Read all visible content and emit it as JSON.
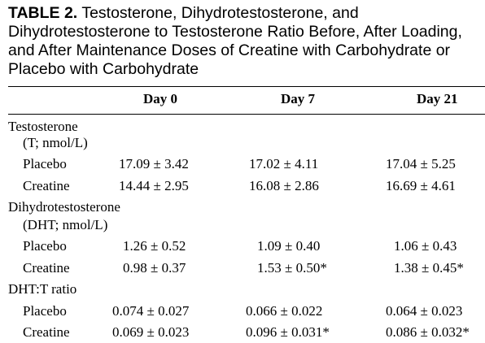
{
  "caption": {
    "label": "TABLE 2.",
    "title": "Testosterone, Dihydrotestosterone, and Dihydrotestosterone to Testosterone Ratio Before, After Loading, and After Maintenance Doses of Creatine with Carbohydrate or Placebo with Carbohydrate"
  },
  "columns": [
    "Day 0",
    "Day 7",
    "Day 21"
  ],
  "sections": [
    {
      "title_line1": "Testosterone",
      "title_line2": "(T; nmol/L)",
      "rows": [
        {
          "label": "Placebo",
          "values": [
            "17.09 ± 3.42",
            "17.02 ± 4.11",
            "17.04 ± 5.25"
          ]
        },
        {
          "label": "Creatine",
          "values": [
            "14.44 ± 2.95",
            "16.08 ± 2.86",
            "16.69 ± 4.61"
          ]
        }
      ]
    },
    {
      "title_line1": "Dihydrotestosterone",
      "title_line2": "(DHT; nmol/L)",
      "rows": [
        {
          "label": "Placebo",
          "values": [
            "1.26 ± 0.52",
            "1.09 ± 0.40",
            "1.06 ± 0.43"
          ]
        },
        {
          "label": "Creatine",
          "values": [
            "0.98 ± 0.37",
            "1.53 ± 0.50*",
            "1.38 ± 0.45*"
          ]
        }
      ]
    },
    {
      "title_line1": "DHT:T ratio",
      "rows": [
        {
          "label": "Placebo",
          "values": [
            "0.074 ± 0.027",
            "0.066 ± 0.022",
            "0.064 ± 0.023"
          ]
        },
        {
          "label": "Creatine",
          "values": [
            "0.069 ± 0.023",
            "0.096 ± 0.031*",
            "0.086 ± 0.032*"
          ]
        }
      ]
    }
  ]
}
